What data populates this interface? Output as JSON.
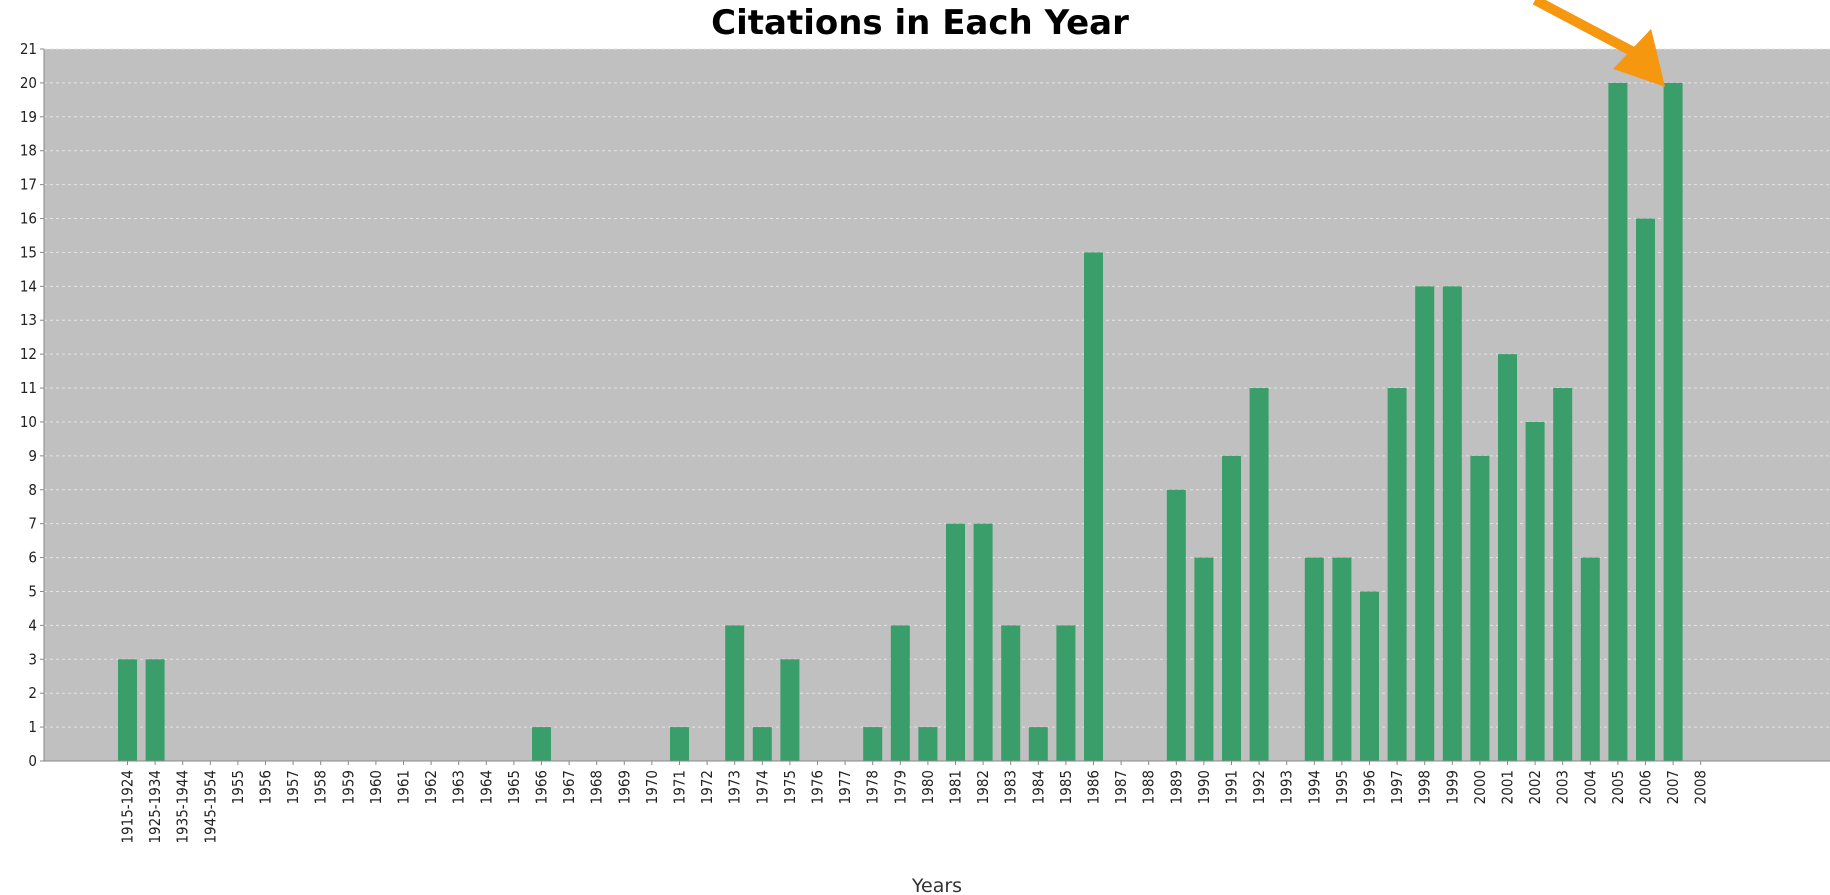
{
  "chart_data": {
    "type": "bar",
    "title": "Citations in Each Year",
    "xlabel": "Years",
    "ylabel": "",
    "ylim": [
      0,
      21
    ],
    "yticks": [
      0,
      1,
      2,
      3,
      4,
      5,
      6,
      7,
      8,
      9,
      10,
      11,
      12,
      13,
      14,
      15,
      16,
      17,
      18,
      19,
      20,
      21
    ],
    "grid": true,
    "legend": "none",
    "colors": {
      "bar": "#3a9e6a",
      "plot_bg": "#c0c0c0",
      "grid": "#e4e4e4",
      "arrow": "#f5970f"
    },
    "categories": [
      "1915-1924",
      "1925-1934",
      "1935-1944",
      "1945-1954",
      "1955",
      "1956",
      "1957",
      "1958",
      "1959",
      "1960",
      "1961",
      "1962",
      "1963",
      "1964",
      "1965",
      "1966",
      "1967",
      "1968",
      "1969",
      "1970",
      "1971",
      "1972",
      "1973",
      "1974",
      "1975",
      "1976",
      "1977",
      "1978",
      "1979",
      "1980",
      "1981",
      "1982",
      "1983",
      "1984",
      "1985",
      "1986",
      "1987",
      "1988",
      "1989",
      "1990",
      "1991",
      "1992",
      "1993",
      "1994",
      "1995",
      "1996",
      "1997",
      "1998",
      "1999",
      "2000",
      "2001",
      "2002",
      "2003",
      "2004",
      "2005",
      "2006",
      "2007",
      "2008"
    ],
    "values": [
      3,
      3,
      0,
      0,
      0,
      0,
      0,
      0,
      0,
      0,
      0,
      0,
      0,
      0,
      0,
      1,
      0,
      0,
      0,
      0,
      1,
      0,
      4,
      1,
      3,
      0,
      0,
      1,
      4,
      1,
      7,
      7,
      4,
      1,
      4,
      15,
      0,
      0,
      8,
      6,
      9,
      11,
      0,
      6,
      6,
      5,
      11,
      14,
      14,
      9,
      12,
      10,
      11,
      6,
      20,
      16,
      20,
      0
    ],
    "annotations": [
      {
        "type": "arrow",
        "target": "2007"
      }
    ]
  }
}
